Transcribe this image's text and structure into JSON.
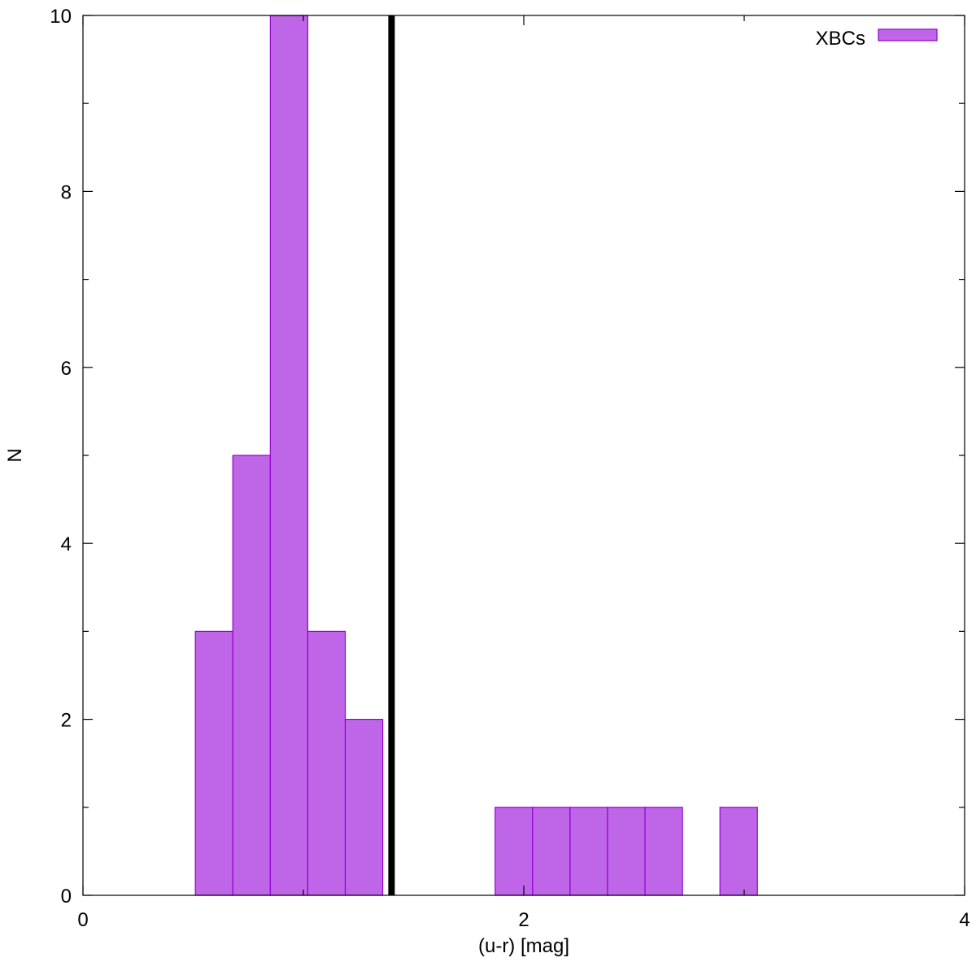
{
  "chart_data": {
    "type": "bar",
    "xlabel": "(u-r) [mag]",
    "ylabel": "N",
    "xlim": [
      0,
      4
    ],
    "ylim": [
      0,
      10
    ],
    "x_ticks": [
      "0",
      "2",
      "4"
    ],
    "y_ticks": [
      "0",
      "2",
      "4",
      "6",
      "8",
      "10"
    ],
    "bin_width": 0.17,
    "series": [
      {
        "name": "XBCs",
        "bins": [
          {
            "x_start": 0.51,
            "x_end": 0.68,
            "value": 3
          },
          {
            "x_start": 0.68,
            "x_end": 0.85,
            "value": 5
          },
          {
            "x_start": 0.85,
            "x_end": 1.02,
            "value": 10
          },
          {
            "x_start": 1.02,
            "x_end": 1.19,
            "value": 3
          },
          {
            "x_start": 1.19,
            "x_end": 1.36,
            "value": 2
          },
          {
            "x_start": 1.87,
            "x_end": 2.04,
            "value": 1
          },
          {
            "x_start": 2.04,
            "x_end": 2.21,
            "value": 1
          },
          {
            "x_start": 2.21,
            "x_end": 2.38,
            "value": 1
          },
          {
            "x_start": 2.38,
            "x_end": 2.55,
            "value": 1
          },
          {
            "x_start": 2.55,
            "x_end": 2.72,
            "value": 1
          },
          {
            "x_start": 2.89,
            "x_end": 3.06,
            "value": 1
          }
        ]
      }
    ],
    "vertical_line": {
      "x": 1.4
    },
    "legend_position": "top-right",
    "grid": false,
    "colors": {
      "bar_fill": "#bf66e8",
      "bar_stroke": "#9400d3",
      "line": "#000000"
    }
  }
}
